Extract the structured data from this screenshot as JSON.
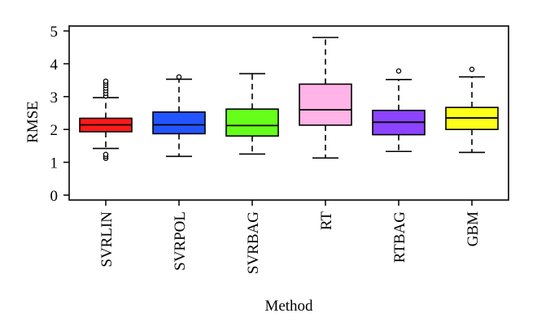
{
  "chart_data": {
    "type": "box",
    "title": "",
    "xlabel": "Method",
    "ylabel": "RMSE",
    "ylim": [
      -0.15,
      5.15
    ],
    "yticks": [
      0,
      1,
      2,
      3,
      4,
      5
    ],
    "grid": false,
    "legend": "none",
    "categories": [
      "SVRLIN",
      "SVRPOL",
      "SVRBAG",
      "RT",
      "RTBAG",
      "GBM"
    ],
    "boxes": [
      {
        "name": "SVRLIN",
        "color": "#ff1a1a",
        "whisker_low": 1.42,
        "q1": 1.93,
        "median": 2.14,
        "q3": 2.34,
        "whisker_high": 2.97,
        "outliers": [
          1.12,
          1.18,
          1.24,
          3.02,
          3.1,
          3.18,
          3.26,
          3.34,
          3.41,
          3.47
        ]
      },
      {
        "name": "SVRPOL",
        "color": "#2255ff",
        "whisker_low": 1.18,
        "q1": 1.87,
        "median": 2.14,
        "q3": 2.53,
        "whisker_high": 3.53,
        "outliers": [
          3.6
        ]
      },
      {
        "name": "SVRBAG",
        "color": "#66ff1a",
        "whisker_low": 1.25,
        "q1": 1.8,
        "median": 2.12,
        "q3": 2.62,
        "whisker_high": 3.7,
        "outliers": []
      },
      {
        "name": "RT",
        "color": "#ffb3e6",
        "whisker_low": 1.13,
        "q1": 2.13,
        "median": 2.6,
        "q3": 3.38,
        "whisker_high": 4.8,
        "outliers": []
      },
      {
        "name": "RTBAG",
        "color": "#8c44ff",
        "whisker_low": 1.33,
        "q1": 1.84,
        "median": 2.22,
        "q3": 2.58,
        "whisker_high": 3.52,
        "outliers": [
          3.78
        ]
      },
      {
        "name": "GBM",
        "color": "#ffff1a",
        "whisker_low": 1.3,
        "q1": 2.0,
        "median": 2.35,
        "q3": 2.67,
        "whisker_high": 3.6,
        "outliers": [
          3.83
        ]
      }
    ]
  }
}
